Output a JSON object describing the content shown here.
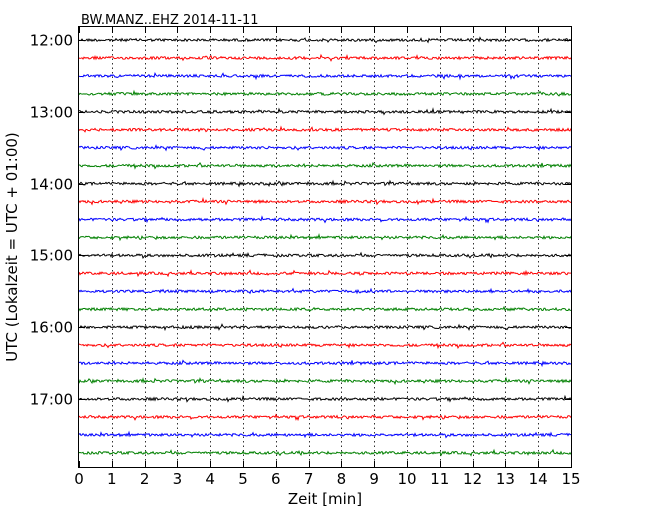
{
  "chart_data": {
    "type": "line",
    "title": "BW.MANZ..EHZ 2014-11-11",
    "xlabel": "Zeit  [min]",
    "ylabel": "UTC (Lokalzeit = UTC + 01:00)",
    "xlim": [
      0,
      15
    ],
    "x_ticks": [
      "0",
      "1",
      "2",
      "3",
      "4",
      "5",
      "6",
      "7",
      "8",
      "9",
      "10",
      "11",
      "12",
      "13",
      "14",
      "15"
    ],
    "y_ticks": [
      "12:00",
      "13:00",
      "14:00",
      "15:00",
      "16:00",
      "17:00"
    ],
    "grid": "vertical dotted",
    "trace_interval_minutes": 15,
    "trace_colors": [
      "#000000",
      "#ff0000",
      "#0000ff",
      "#008000"
    ],
    "series": [
      {
        "start": "12:00",
        "color": "#000000"
      },
      {
        "start": "12:15",
        "color": "#ff0000"
      },
      {
        "start": "12:30",
        "color": "#0000ff"
      },
      {
        "start": "12:45",
        "color": "#008000"
      },
      {
        "start": "13:00",
        "color": "#000000"
      },
      {
        "start": "13:15",
        "color": "#ff0000"
      },
      {
        "start": "13:30",
        "color": "#0000ff"
      },
      {
        "start": "13:45",
        "color": "#008000"
      },
      {
        "start": "14:00",
        "color": "#000000"
      },
      {
        "start": "14:15",
        "color": "#ff0000"
      },
      {
        "start": "14:30",
        "color": "#0000ff"
      },
      {
        "start": "14:45",
        "color": "#008000"
      },
      {
        "start": "15:00",
        "color": "#000000"
      },
      {
        "start": "15:15",
        "color": "#ff0000"
      },
      {
        "start": "15:30",
        "color": "#0000ff"
      },
      {
        "start": "15:45",
        "color": "#008000"
      },
      {
        "start": "16:00",
        "color": "#000000"
      },
      {
        "start": "16:15",
        "color": "#ff0000"
      },
      {
        "start": "16:30",
        "color": "#0000ff"
      },
      {
        "start": "16:45",
        "color": "#008000"
      },
      {
        "start": "17:00",
        "color": "#000000"
      },
      {
        "start": "17:15",
        "color": "#ff0000"
      },
      {
        "start": "17:30",
        "color": "#0000ff"
      },
      {
        "start": "17:45",
        "color": "#008000"
      }
    ]
  }
}
